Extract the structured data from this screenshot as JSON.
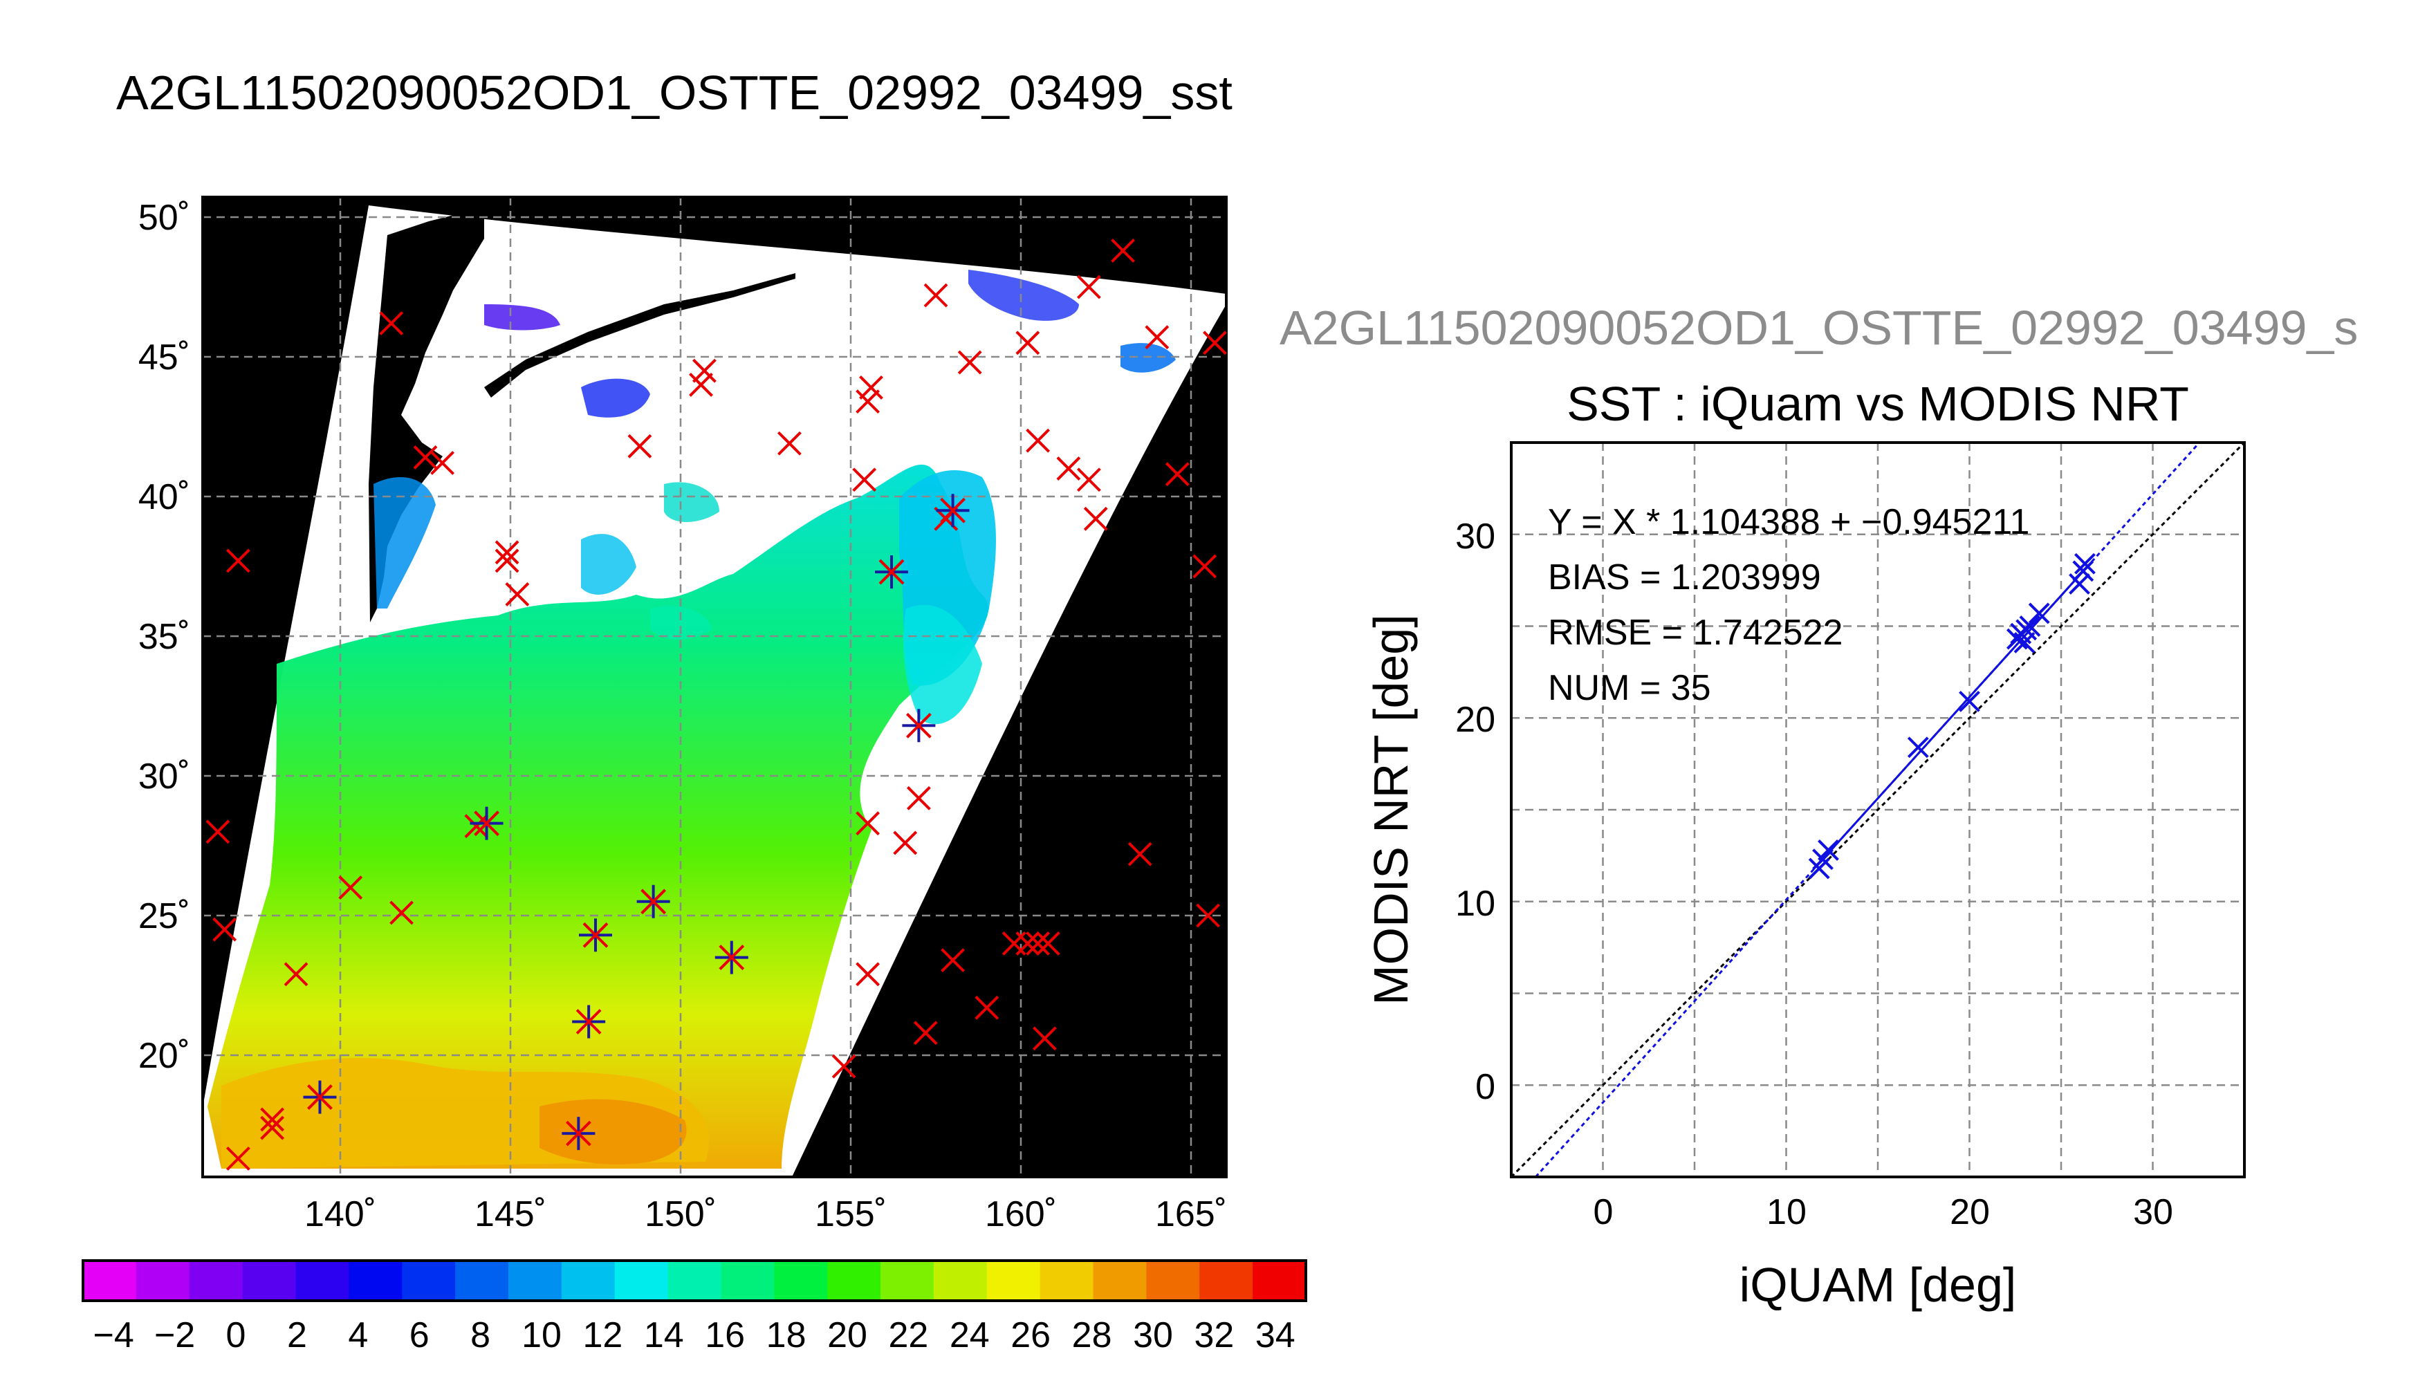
{
  "figure_title": "A2GL11502090052OD1_OSTTE_02992_03499_sst",
  "chart_data": [
    {
      "type": "map",
      "lon_ticks": [
        "140˚",
        "145˚",
        "150˚",
        "155˚",
        "160˚",
        "165˚"
      ],
      "lat_ticks": [
        "50˚",
        "45˚",
        "40˚",
        "35˚",
        "30˚",
        "25˚",
        "20˚"
      ],
      "lon_range": [
        136.0,
        166.0
      ],
      "lat_range": [
        16.0,
        50.7
      ],
      "colorbar": {
        "labels": [
          "−4",
          "−2",
          "0",
          "2",
          "4",
          "6",
          "8",
          "10",
          "12",
          "14",
          "16",
          "18",
          "20",
          "22",
          "24",
          "26",
          "28",
          "30",
          "32",
          "34"
        ],
        "range": [
          -5,
          35
        ],
        "colors": [
          "#e400f6",
          "#b000f6",
          "#8000f4",
          "#5800f0",
          "#2c00f0",
          "#0008f2",
          "#0030f2",
          "#0060f0",
          "#0090f0",
          "#00c0f0",
          "#00ecec",
          "#00f0b0",
          "#00f07c",
          "#00f040",
          "#30f000",
          "#7cf000",
          "#c0f000",
          "#f0f000",
          "#f0cc00",
          "#f09c00",
          "#f06c00",
          "#f03800",
          "#f00000"
        ]
      },
      "colorbar_grid": "off",
      "in_situ_matchups": [
        {
          "lon": 158.0,
          "lat": 39.5
        },
        {
          "lon": 156.2,
          "lat": 37.3
        },
        {
          "lon": 157.0,
          "lat": 31.8
        },
        {
          "lon": 144.3,
          "lat": 28.3
        },
        {
          "lon": 149.2,
          "lat": 25.5
        },
        {
          "lon": 147.5,
          "lat": 24.3
        },
        {
          "lon": 151.5,
          "lat": 23.5
        },
        {
          "lon": 147.3,
          "lat": 21.2
        },
        {
          "lon": 139.4,
          "lat": 18.5
        },
        {
          "lon": 147.0,
          "lat": 17.2
        }
      ],
      "in_situ_unmatched": [
        {
          "lon": 163.0,
          "lat": 48.8
        },
        {
          "lon": 162.0,
          "lat": 47.5
        },
        {
          "lon": 157.5,
          "lat": 47.2
        },
        {
          "lon": 141.5,
          "lat": 46.2
        },
        {
          "lon": 164.0,
          "lat": 45.7
        },
        {
          "lon": 165.7,
          "lat": 45.5
        },
        {
          "lon": 160.2,
          "lat": 45.5
        },
        {
          "lon": 158.5,
          "lat": 44.8
        },
        {
          "lon": 150.7,
          "lat": 44.5
        },
        {
          "lon": 150.6,
          "lat": 44.0
        },
        {
          "lon": 155.6,
          "lat": 43.9
        },
        {
          "lon": 155.5,
          "lat": 43.4
        },
        {
          "lon": 160.5,
          "lat": 42.0
        },
        {
          "lon": 153.2,
          "lat": 41.9
        },
        {
          "lon": 148.8,
          "lat": 41.8
        },
        {
          "lon": 142.5,
          "lat": 41.4
        },
        {
          "lon": 143.0,
          "lat": 41.2
        },
        {
          "lon": 161.4,
          "lat": 41.0
        },
        {
          "lon": 164.6,
          "lat": 40.8
        },
        {
          "lon": 162.0,
          "lat": 40.6
        },
        {
          "lon": 155.4,
          "lat": 40.6
        },
        {
          "lon": 157.8,
          "lat": 39.2
        },
        {
          "lon": 162.2,
          "lat": 39.2
        },
        {
          "lon": 144.9,
          "lat": 38.0
        },
        {
          "lon": 144.9,
          "lat": 37.7
        },
        {
          "lon": 137.0,
          "lat": 37.7
        },
        {
          "lon": 165.4,
          "lat": 37.5
        },
        {
          "lon": 145.2,
          "lat": 36.5
        },
        {
          "lon": 157.0,
          "lat": 29.2
        },
        {
          "lon": 155.5,
          "lat": 28.3
        },
        {
          "lon": 144.0,
          "lat": 28.2
        },
        {
          "lon": 136.4,
          "lat": 28.0
        },
        {
          "lon": 156.6,
          "lat": 27.6
        },
        {
          "lon": 163.5,
          "lat": 27.2
        },
        {
          "lon": 140.3,
          "lat": 26.0
        },
        {
          "lon": 141.8,
          "lat": 25.1
        },
        {
          "lon": 165.5,
          "lat": 25.0
        },
        {
          "lon": 136.6,
          "lat": 24.5
        },
        {
          "lon": 159.8,
          "lat": 24.0
        },
        {
          "lon": 160.2,
          "lat": 24.0
        },
        {
          "lon": 160.5,
          "lat": 24.0
        },
        {
          "lon": 160.8,
          "lat": 24.0
        },
        {
          "lon": 158.0,
          "lat": 23.4
        },
        {
          "lon": 138.7,
          "lat": 22.9
        },
        {
          "lon": 155.5,
          "lat": 22.9
        },
        {
          "lon": 159.0,
          "lat": 21.7
        },
        {
          "lon": 157.2,
          "lat": 20.8
        },
        {
          "lon": 160.7,
          "lat": 20.6
        },
        {
          "lon": 154.8,
          "lat": 19.6
        },
        {
          "lon": 138.0,
          "lat": 17.7
        },
        {
          "lon": 138.0,
          "lat": 17.4
        },
        {
          "lon": 137.0,
          "lat": 16.3
        }
      ]
    },
    {
      "type": "scatter",
      "subplot_title": "A2GL11502090052OD1_OSTTE_02992_03499_s",
      "title": "SST : iQuam vs MODIS NRT",
      "xlabel": "iQUAM [deg]",
      "ylabel": "MODIS NRT [deg]",
      "xlim": [
        -5,
        35
      ],
      "ylim": [
        -5,
        35
      ],
      "x_ticks": [
        "0",
        "10",
        "20",
        "30"
      ],
      "y_ticks": [
        "0",
        "10",
        "20",
        "30"
      ],
      "grid": "on",
      "stats": [
        "Y = X * 1.104388 + −0.945211",
        "BIAS = 1.203999",
        "RMSE = 1.742522",
        "NUM = 35"
      ],
      "fit": {
        "slope": 1.104388,
        "intercept": -0.945211
      },
      "identity_line": true,
      "points": [
        {
          "x": 11.8,
          "y": 11.8
        },
        {
          "x": 12.0,
          "y": 12.3
        },
        {
          "x": 12.3,
          "y": 12.8
        },
        {
          "x": 17.2,
          "y": 18.4
        },
        {
          "x": 20.0,
          "y": 20.9
        },
        {
          "x": 22.6,
          "y": 24.3
        },
        {
          "x": 22.8,
          "y": 24.6
        },
        {
          "x": 23.0,
          "y": 24.1
        },
        {
          "x": 23.1,
          "y": 24.8
        },
        {
          "x": 23.3,
          "y": 25.0
        },
        {
          "x": 23.8,
          "y": 25.7
        },
        {
          "x": 26.0,
          "y": 27.3
        },
        {
          "x": 26.2,
          "y": 28.0
        },
        {
          "x": 26.3,
          "y": 28.4
        }
      ]
    }
  ]
}
